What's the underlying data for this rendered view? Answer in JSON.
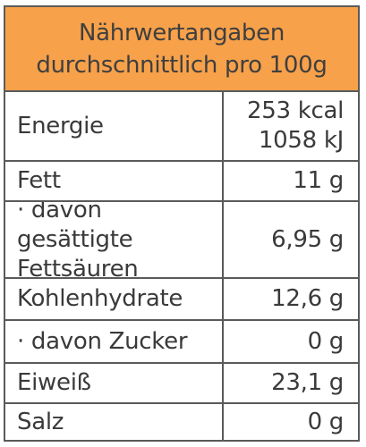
{
  "header": {
    "line1": "Nährwertangaben",
    "line2": "durchschnittlich pro 100g"
  },
  "rows": [
    {
      "label": "Energie",
      "value_lines": [
        "253 kcal",
        "1058 kJ"
      ]
    },
    {
      "label": "Fett",
      "value": "11 g"
    },
    {
      "label_lines": [
        "· davon gesättigte",
        "Fettsäuren"
      ],
      "value": "6,95 g"
    },
    {
      "label": "Kohlenhydrate",
      "value": "12,6 g"
    },
    {
      "label": "· davon Zucker",
      "value": "0 g"
    },
    {
      "label": "Eiweiß",
      "value": "23,1 g"
    },
    {
      "label": "Salz",
      "value": "0 g"
    }
  ],
  "colors": {
    "header_background": "#f7a14a",
    "border": "#5a5a5a",
    "text": "#3a3a3a"
  }
}
